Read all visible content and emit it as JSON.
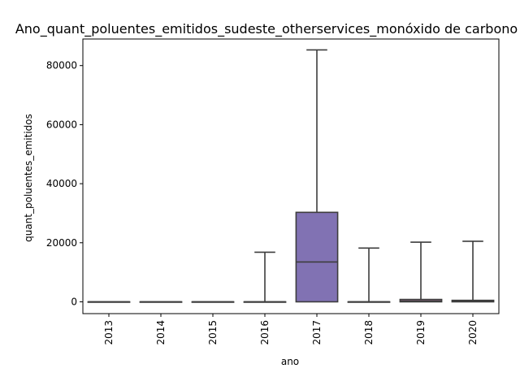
{
  "chart_data": {
    "type": "boxplot",
    "title": "Ano_quant_poluentes_emitidos_sudeste_otherservices_monóxido de carbono",
    "xlabel": "ano",
    "ylabel": "quant_poluentes_emitidos",
    "ylim": [
      -4000,
      89000
    ],
    "yticks": [
      0,
      20000,
      40000,
      60000,
      80000
    ],
    "ytick_labels": [
      "0",
      "20000",
      "40000",
      "60000",
      "80000"
    ],
    "categories": [
      "2013",
      "2014",
      "2015",
      "2016",
      "2017",
      "2018",
      "2019",
      "2020"
    ],
    "boxes": [
      {
        "category": "2013",
        "whisker_low": 0,
        "q1": 0,
        "median": 0,
        "q3": 0,
        "whisker_high": 0,
        "color": "#4c72b0"
      },
      {
        "category": "2014",
        "whisker_low": 0,
        "q1": 0,
        "median": 0,
        "q3": 0,
        "whisker_high": 0,
        "color": "#dd8452"
      },
      {
        "category": "2015",
        "whisker_low": 0,
        "q1": 0,
        "median": 0,
        "q3": 0,
        "whisker_high": 0,
        "color": "#55a868"
      },
      {
        "category": "2016",
        "whisker_low": 0,
        "q1": 0,
        "median": 0,
        "q3": 0,
        "whisker_high": 16800,
        "color": "#c44e52"
      },
      {
        "category": "2017",
        "whisker_low": 0,
        "q1": 0,
        "median": 13500,
        "q3": 30300,
        "whisker_high": 85300,
        "color": "#8172b3"
      },
      {
        "category": "2018",
        "whisker_low": 0,
        "q1": 0,
        "median": 0,
        "q3": 0,
        "whisker_high": 18200,
        "color": "#937860"
      },
      {
        "category": "2019",
        "whisker_low": 0,
        "q1": 0,
        "median": 300,
        "q3": 800,
        "whisker_high": 20200,
        "color": "#da8bc3"
      },
      {
        "category": "2020",
        "whisker_low": 0,
        "q1": 0,
        "median": 200,
        "q3": 500,
        "whisker_high": 20500,
        "color": "#8c8c8c"
      }
    ]
  }
}
